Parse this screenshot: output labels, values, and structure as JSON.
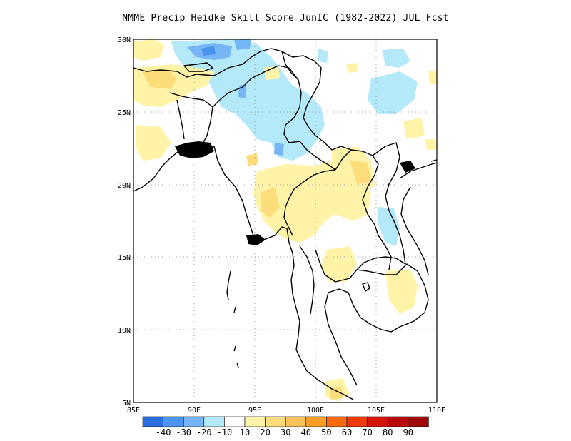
{
  "title": "NMME Precip Heidke Skill Score JunIC (1982-2022) JUL Fcst",
  "map": {
    "lon_labels": [
      "85E",
      "90E",
      "95E",
      "100E",
      "105E",
      "110E"
    ],
    "lat_labels": [
      "30N",
      "25N",
      "20N",
      "15N",
      "10N",
      "5N"
    ],
    "lon_range": [
      85,
      110
    ],
    "lat_range": [
      5,
      30
    ],
    "gridlines": "dotted"
  },
  "colorbar": {
    "labels": [
      "-40",
      "-30",
      "-20",
      "-10",
      "10",
      "20",
      "30",
      "40",
      "50",
      "60",
      "70",
      "80",
      "90"
    ],
    "colors": [
      "#2a6fe0",
      "#4a95ee",
      "#76b6f6",
      "#b4e9f9",
      "#ffffff",
      "#fff3a8",
      "#fddc7a",
      "#fbc25a",
      "#fa9e28",
      "#f76a10",
      "#ee3a08",
      "#d31408",
      "#b80c0c",
      "#9e0a0a"
    ]
  }
}
